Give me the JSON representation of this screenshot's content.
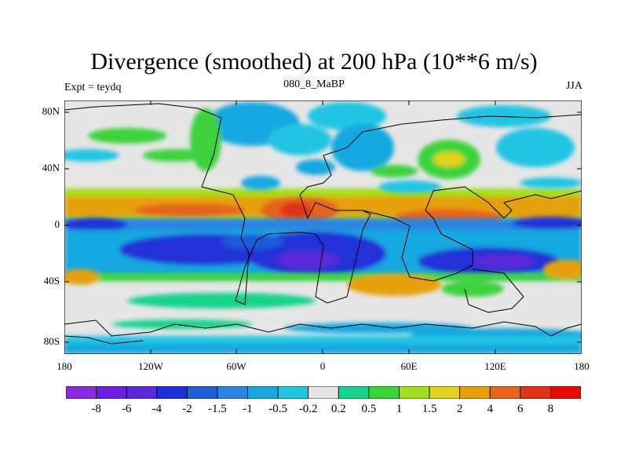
{
  "title": "Divergence (smoothed) at 200 hPa (10**6 m/s)",
  "left_label": "Expt = teydq",
  "center_label": "080_8_MaBP",
  "right_label": "JJA",
  "lat_labels": [
    "80N",
    "40N",
    "0",
    "40S",
    "80S"
  ],
  "lon_labels": [
    "180",
    "120W",
    "60W",
    "0",
    "60E",
    "120E",
    "180"
  ],
  "colorbar": {
    "labels": [
      "-8",
      "-6",
      "-4",
      "-2",
      "-1.5",
      "-1",
      "-0.5",
      "-0.2",
      "0.2",
      "0.5",
      "1",
      "1.5",
      "2",
      "4",
      "6",
      "8"
    ],
    "colors": [
      "#8a2be2",
      "#6a1ee0",
      "#5a2ad8",
      "#2030d8",
      "#1e5cd8",
      "#2a84e0",
      "#19a8e0",
      "#22c4e4",
      "#e6e6e6",
      "#19d28c",
      "#3cd23c",
      "#a0e01e",
      "#e0d21e",
      "#e6a00a",
      "#e6641e",
      "#e03214",
      "#e60a0a"
    ]
  }
}
